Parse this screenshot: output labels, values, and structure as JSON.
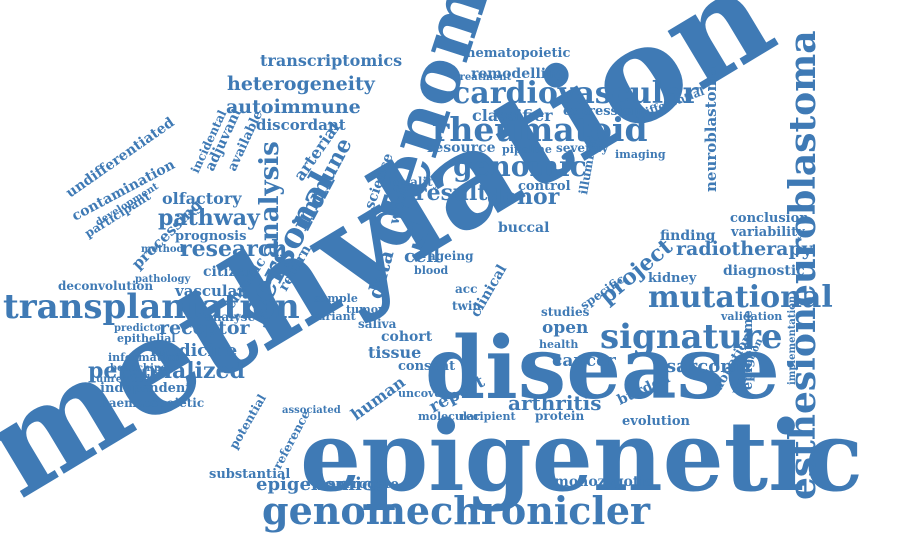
{
  "word_color": "#3f7ab5",
  "background": "#ffffff",
  "words": [
    "methylation",
    "epigenetic",
    "disease",
    "genome",
    "genomechronicler",
    "esthesioneuroblastoma",
    "transplantation",
    "mutational",
    "signature",
    "rheumatoid",
    "cardiovascular",
    "genomic",
    "personal",
    "personalized",
    "arthritis",
    "epigenomics",
    "neuroblastoma",
    "pathway",
    "research",
    "heterogeneity",
    "autoimmune",
    "transcriptomics",
    "analysis",
    "immune",
    "project",
    "result",
    "donor",
    "radiotherapy",
    "receptor",
    "medicine",
    "sarcoma",
    "cancer",
    "open",
    "report",
    "human",
    "classifier",
    "remodelling",
    "hematopoietic",
    "surrogate",
    "monozygotic",
    "undifferentiated",
    "contamination",
    "processing",
    "vascular",
    "citizen",
    "prognosis",
    "independent",
    "haematopoietic",
    "deconvolution",
    "olfactory",
    "science",
    "tissue",
    "cohort",
    "consent",
    "cell",
    "data",
    "clinical",
    "twin",
    "expression",
    "diagnostic",
    "kidney",
    "conclusion",
    "variability",
    "finding",
    "validation",
    "epigenome",
    "implementation",
    "burden",
    "evolution",
    "donation",
    "population",
    "resource",
    "pipeline",
    "severity",
    "imaging",
    "buccal",
    "control",
    "quality",
    "illumina",
    "discordant",
    "adjuvant",
    "available",
    "incidental",
    "participant",
    "development",
    "arterial",
    "analyse",
    "epithelial",
    "predictor",
    "information",
    "chronic",
    "return",
    "substantial",
    "reference",
    "potential",
    "associated",
    "molecular",
    "recipient",
    "protein",
    "saliva",
    "ageing",
    "studies",
    "specific",
    "treatment",
    "differential",
    "tumor",
    "health",
    "uncover",
    "variant",
    "sample",
    "beadchips",
    "unrelated",
    "pathology",
    "method",
    "blood",
    "whole",
    "acc"
  ]
}
